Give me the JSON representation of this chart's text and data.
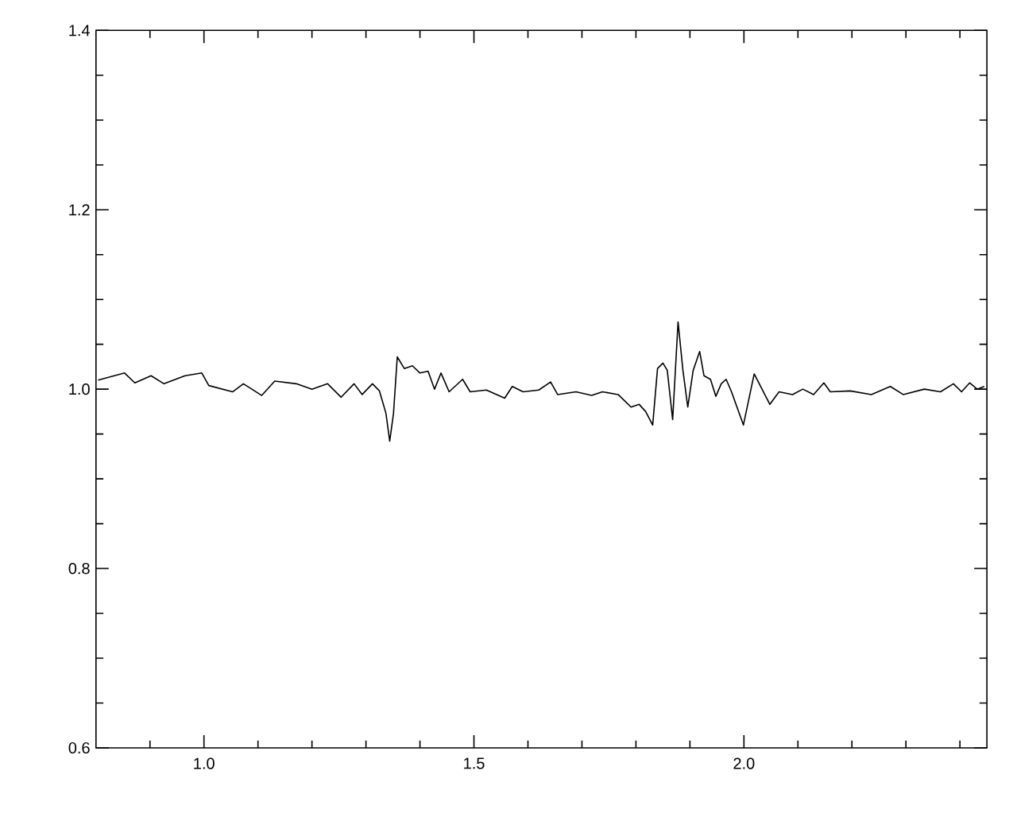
{
  "chart_data": {
    "type": "line",
    "color": "#000000",
    "marker": "none",
    "line_style": "solid",
    "xlim": [
      0.8,
      2.45
    ],
    "ylim": [
      0.6,
      1.4
    ],
    "xticks": [
      {
        "value": 0.9,
        "label": null
      },
      {
        "value": 1.0,
        "label": "1.0"
      },
      {
        "value": 1.1,
        "label": null
      },
      {
        "value": 1.2,
        "label": null
      },
      {
        "value": 1.3,
        "label": null
      },
      {
        "value": 1.4,
        "label": null
      },
      {
        "value": 1.5,
        "label": "1.5"
      },
      {
        "value": 1.6,
        "label": null
      },
      {
        "value": 1.7,
        "label": null
      },
      {
        "value": 1.8,
        "label": null
      },
      {
        "value": 1.9,
        "label": null
      },
      {
        "value": 2.0,
        "label": "2.0"
      },
      {
        "value": 2.1,
        "label": null
      },
      {
        "value": 2.2,
        "label": null
      },
      {
        "value": 2.3,
        "label": null
      },
      {
        "value": 2.4,
        "label": null
      }
    ],
    "yticks": [
      {
        "value": 0.6,
        "label": "0.6"
      },
      {
        "value": 0.65,
        "label": null
      },
      {
        "value": 0.7,
        "label": null
      },
      {
        "value": 0.75,
        "label": null
      },
      {
        "value": 0.8,
        "label": "0.8"
      },
      {
        "value": 0.85,
        "label": null
      },
      {
        "value": 0.9,
        "label": null
      },
      {
        "value": 0.95,
        "label": null
      },
      {
        "value": 1.0,
        "label": "1.0"
      },
      {
        "value": 1.05,
        "label": null
      },
      {
        "value": 1.1,
        "label": null
      },
      {
        "value": 1.15,
        "label": null
      },
      {
        "value": 1.2,
        "label": "1.2"
      },
      {
        "value": 1.25,
        "label": null
      },
      {
        "value": 1.3,
        "label": null
      },
      {
        "value": 1.35,
        "label": null
      },
      {
        "value": 1.4,
        "label": "1.4"
      }
    ],
    "x": [
      0.804,
      0.853,
      0.872,
      0.902,
      0.926,
      0.965,
      0.996,
      1.009,
      1.053,
      1.073,
      1.107,
      1.131,
      1.171,
      1.2,
      1.229,
      1.254,
      1.278,
      1.293,
      1.312,
      1.325,
      1.337,
      1.344,
      1.351,
      1.358,
      1.371,
      1.386,
      1.4,
      1.415,
      1.427,
      1.439,
      1.454,
      1.479,
      1.493,
      1.523,
      1.557,
      1.571,
      1.591,
      1.62,
      1.642,
      1.655,
      1.689,
      1.718,
      1.738,
      1.767,
      1.791,
      1.806,
      1.818,
      1.831,
      1.84,
      1.85,
      1.858,
      1.868,
      1.878,
      1.887,
      1.896,
      1.906,
      1.918,
      1.926,
      1.938,
      1.948,
      1.958,
      1.967,
      1.977,
      1.999,
      2.019,
      2.048,
      2.065,
      2.09,
      2.109,
      2.129,
      2.148,
      2.16,
      2.197,
      2.236,
      2.271,
      2.295,
      2.334,
      2.364,
      2.388,
      2.403,
      2.418,
      2.432,
      2.445
    ],
    "values": [
      1.01,
      1.018,
      1.007,
      1.015,
      1.006,
      1.015,
      1.018,
      1.004,
      0.997,
      1.006,
      0.993,
      1.009,
      1.006,
      1.0,
      1.006,
      0.991,
      1.006,
      0.994,
      1.006,
      0.998,
      0.973,
      0.942,
      0.973,
      1.036,
      1.023,
      1.026,
      1.018,
      1.02,
      1.0,
      1.018,
      0.997,
      1.011,
      0.997,
      0.999,
      0.99,
      1.003,
      0.997,
      0.999,
      1.008,
      0.994,
      0.997,
      0.993,
      0.997,
      0.994,
      0.98,
      0.983,
      0.975,
      0.96,
      1.023,
      1.029,
      1.021,
      0.966,
      1.075,
      1.021,
      0.98,
      1.021,
      1.042,
      1.015,
      1.011,
      0.992,
      1.006,
      1.011,
      0.997,
      0.96,
      1.017,
      0.983,
      0.997,
      0.994,
      1.0,
      0.994,
      1.007,
      0.997,
      0.998,
      0.994,
      1.003,
      0.994,
      1.0,
      0.997,
      1.006,
      0.997,
      1.007,
      1.0,
      1.003
    ]
  }
}
